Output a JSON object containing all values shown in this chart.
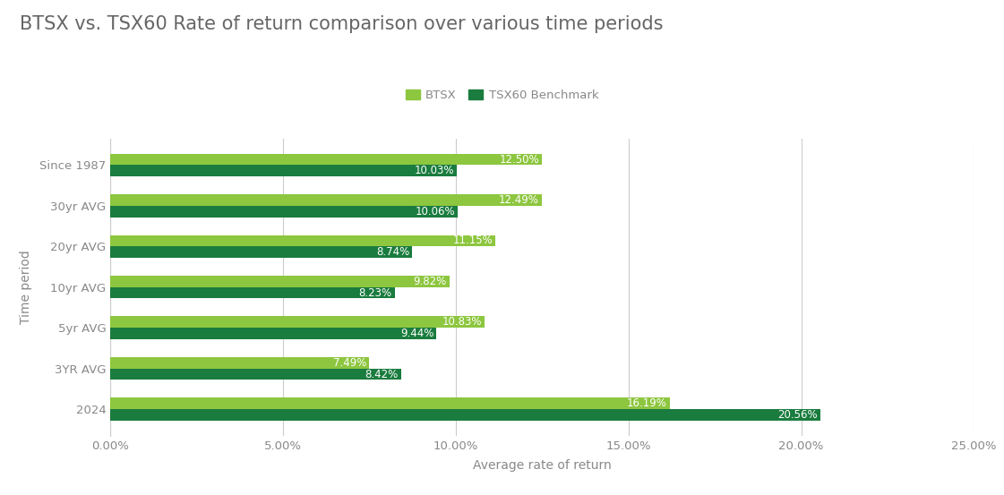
{
  "title": "BTSX vs. TSX60 Rate of return comparison over various time periods",
  "xlabel": "Average rate of return",
  "ylabel": "Time period",
  "categories": [
    "Since 1987",
    "30yr AVG",
    "20yr AVG",
    "10yr AVG",
    "5yr AVG",
    "3YR AVG",
    "2024"
  ],
  "btsx_values": [
    12.5,
    12.49,
    11.15,
    9.82,
    10.83,
    7.49,
    16.19
  ],
  "tsx60_values": [
    10.03,
    10.06,
    8.74,
    8.23,
    9.44,
    8.42,
    20.56
  ],
  "btsx_color": "#8dc63f",
  "tsx60_color": "#1a7c3e",
  "legend_labels": [
    "BTSX",
    "TSX60 Benchmark"
  ],
  "xlim": [
    0,
    25
  ],
  "xticks": [
    0,
    5,
    10,
    15,
    20,
    25
  ],
  "xtick_labels": [
    "0.00%",
    "5.00%",
    "10.00%",
    "15.00%",
    "20.00%",
    "25.00%"
  ],
  "bar_height": 0.28,
  "label_fontsize": 8.5,
  "title_fontsize": 15,
  "axis_label_fontsize": 10,
  "tick_fontsize": 9.5,
  "background_color": "#ffffff",
  "grid_color": "#cccccc",
  "title_color": "#666666",
  "axis_label_color": "#888888",
  "tick_label_color": "#888888"
}
